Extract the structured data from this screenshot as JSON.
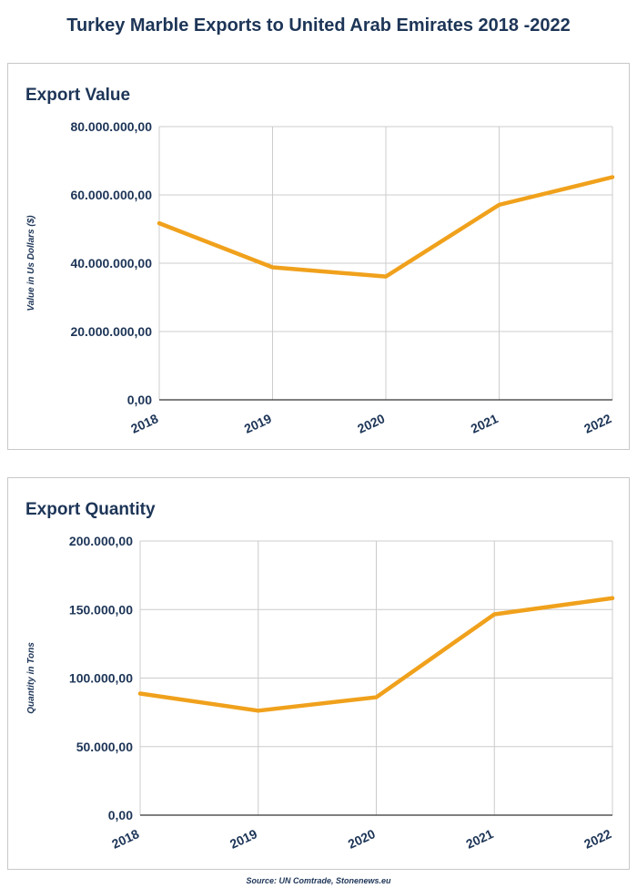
{
  "title": "Turkey Marble Exports to United Arab Emirates 2018 -2022",
  "source": "Source: UN Comtrade, Stonenews.eu",
  "colors": {
    "line": "#f0a11c",
    "text": "#1d3557",
    "grid": "#cccccc",
    "axis": "#333333"
  },
  "chart_data": [
    {
      "type": "line",
      "title": "Export Value",
      "ylabel": "Value in Us Dollars ($)",
      "xlabel": "",
      "categories": [
        "2018",
        "2019",
        "2020",
        "2021",
        "2022"
      ],
      "values": [
        51700000,
        38800000,
        36100000,
        57100000,
        65200000
      ],
      "ylim": [
        0,
        80000000
      ],
      "yticks": [
        0,
        20000000,
        40000000,
        60000000,
        80000000
      ],
      "ytick_labels": [
        "0,00",
        "20.000.000,00",
        "40.000.000,00",
        "60.000.000,00",
        "80.000.000,00"
      ],
      "grid": true,
      "legend": "none"
    },
    {
      "type": "line",
      "title": "Export Quantity",
      "ylabel": "Quantity in Tons",
      "xlabel": "",
      "categories": [
        "2018",
        "2019",
        "2020",
        "2021",
        "2022"
      ],
      "values": [
        88700,
        76200,
        86000,
        146500,
        158300
      ],
      "ylim": [
        0,
        200000
      ],
      "yticks": [
        0,
        50000,
        100000,
        150000,
        200000
      ],
      "ytick_labels": [
        "0,00",
        "50.000,00",
        "100.000,00",
        "150.000,00",
        "200.000,00"
      ],
      "grid": true,
      "legend": "none"
    }
  ]
}
